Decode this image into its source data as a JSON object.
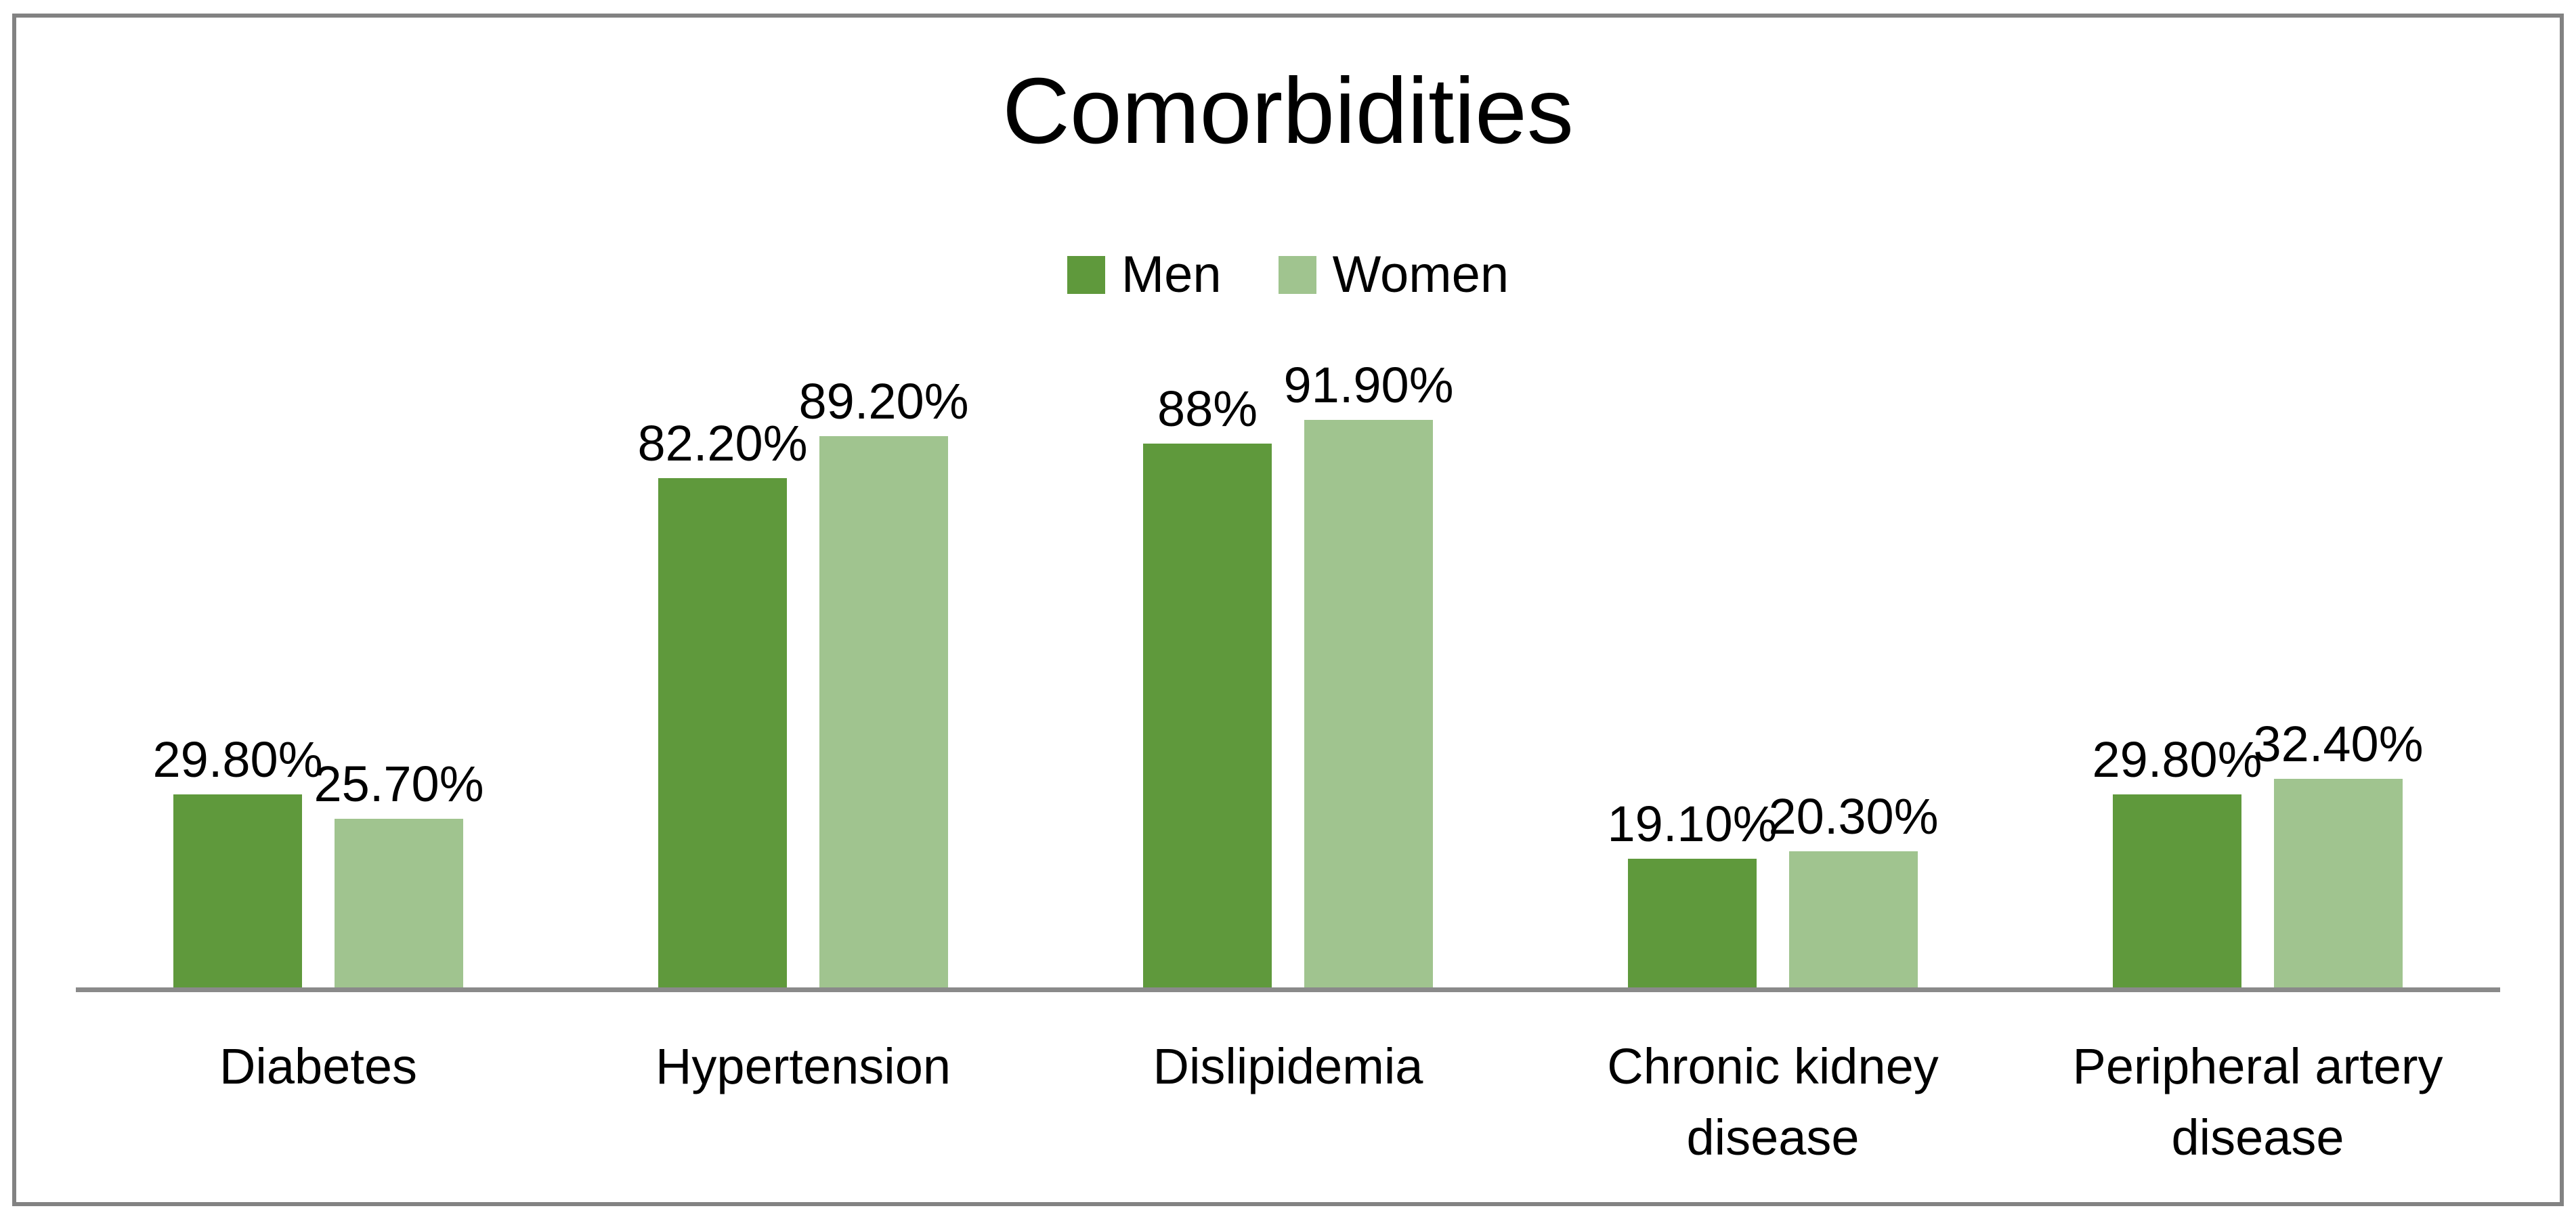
{
  "title": "Comorbidities",
  "legend": [
    {
      "label": "Men",
      "color": "#5f993c"
    },
    {
      "label": "Women",
      "color": "#a0c48f"
    }
  ],
  "axis_color": "#8a8a8a",
  "frame_color": "#828282",
  "chart_data": {
    "type": "bar",
    "title": "Comorbidities",
    "categories": [
      "Diabetes",
      "Hypertension",
      "Dislipidemia",
      "Chronic kidney disease",
      "Peripheral artery disease"
    ],
    "series": [
      {
        "name": "Men",
        "color": "#5f993c",
        "values": [
          29.8,
          82.2,
          88,
          19.1,
          29.8
        ],
        "labels": [
          "29.80%",
          "82.20%",
          "88%",
          "19.10%",
          "29.80%"
        ]
      },
      {
        "name": "Women",
        "color": "#a0c48f",
        "values": [
          25.7,
          89.2,
          91.9,
          20.3,
          32.4
        ],
        "labels": [
          "25.70%",
          "89.20%",
          "91.90%",
          "20.30%",
          "32.40%"
        ]
      }
    ],
    "ylabel": "",
    "xlabel": "",
    "ylim": [
      0,
      100
    ],
    "grid": false,
    "y_axis_visible": false,
    "legend_position": "top",
    "data_labels": true
  }
}
